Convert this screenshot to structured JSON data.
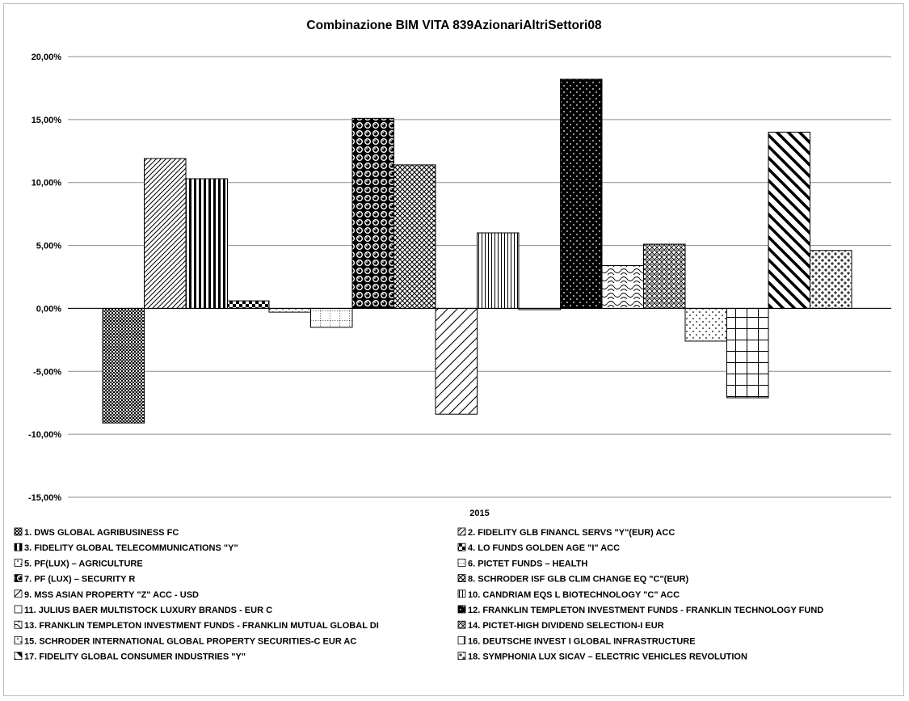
{
  "chart_data": {
    "type": "bar",
    "title": "Combinazione BIM VITA 839AzionariAltriSettori08",
    "categories": [
      "2015"
    ],
    "ylim": [
      -15,
      20
    ],
    "yticks": [
      -15,
      -10,
      -5,
      0,
      5,
      10,
      15,
      20
    ],
    "ytick_labels": [
      "-15,00%",
      "-10,00%",
      "-5,00%",
      "0,00%",
      "5,00%",
      "10,00%",
      "15,00%",
      "20,00%"
    ],
    "grid": true,
    "legend_position": "bottom",
    "series": [
      {
        "name": "1. DWS GLOBAL AGRIBUSINESS FC",
        "values": [
          -9.1
        ],
        "pattern": "dense-dots"
      },
      {
        "name": "2. FIDELITY GLB FINANCL SERVS \"Y\"(EUR) ACC",
        "values": [
          11.9
        ],
        "pattern": "thin-diagonal"
      },
      {
        "name": "3. FIDELITY GLOBAL TELECOMMUNICATIONS \"Y\"",
        "values": [
          10.3
        ],
        "pattern": "vertical-stripes"
      },
      {
        "name": "4. LO FUNDS GOLDEN AGE \"I\" ACC",
        "values": [
          0.6
        ],
        "pattern": "checker"
      },
      {
        "name": "5. PF(LUX) – AGRICULTURE",
        "values": [
          -0.3
        ],
        "pattern": "sparse-dots"
      },
      {
        "name": "6. PICTET FUNDS – HEALTH",
        "values": [
          -1.5
        ],
        "pattern": "dotted-grid"
      },
      {
        "name": "7. PF (LUX) – SECURITY R",
        "values": [
          15.1
        ],
        "pattern": "spheres"
      },
      {
        "name": "8. SCHRODER ISF GLB CLIM CHANGE EQ \"C\"(EUR)",
        "values": [
          11.4
        ],
        "pattern": "diagonal-cross"
      },
      {
        "name": "9. MSS ASIAN PROPERTY \"Z\" ACC - USD",
        "values": [
          -8.4
        ],
        "pattern": "wide-diagonal"
      },
      {
        "name": "10. CANDRIAM EQS L BIOTECHNOLOGY \"C\" ACC",
        "values": [
          6.0
        ],
        "pattern": "vertical-thin"
      },
      {
        "name": "11. JULIUS BAER MULTISTOCK LUXURY BRANDS - EUR C",
        "values": [
          -0.1
        ],
        "pattern": "plain"
      },
      {
        "name": "12. FRANKLIN TEMPLETON INVESTMENT FUNDS - FRANKLIN TECHNOLOGY FUND",
        "values": [
          18.2
        ],
        "pattern": "black-dots"
      },
      {
        "name": "13. FRANKLIN TEMPLETON INVESTMENT FUNDS - FRANKLIN MUTUAL GLOBAL DI",
        "values": [
          3.4
        ],
        "pattern": "scales"
      },
      {
        "name": "14. PICTET-HIGH DIVIDEND SELECTION-I EUR",
        "values": [
          5.1
        ],
        "pattern": "diamond"
      },
      {
        "name": "15. SCHRODER INTERNATIONAL GLOBAL PROPERTY SECURITIES-C EUR AC",
        "values": [
          -2.6
        ],
        "pattern": "sparse-dots"
      },
      {
        "name": "16. DEUTSCHE INVEST I GLOBAL INFRASTRUCTURE",
        "values": [
          -7.1
        ],
        "pattern": "grid"
      },
      {
        "name": "17. FIDELITY GLOBAL CONSUMER INDUSTRIES \"Y\"",
        "values": [
          14.0
        ],
        "pattern": "bold-back-diagonal"
      },
      {
        "name": "18. SYMPHONIA LUX SICAV – ELECTRIC VEHICLES REVOLUTION",
        "values": [
          4.6
        ],
        "pattern": "weave"
      }
    ]
  }
}
